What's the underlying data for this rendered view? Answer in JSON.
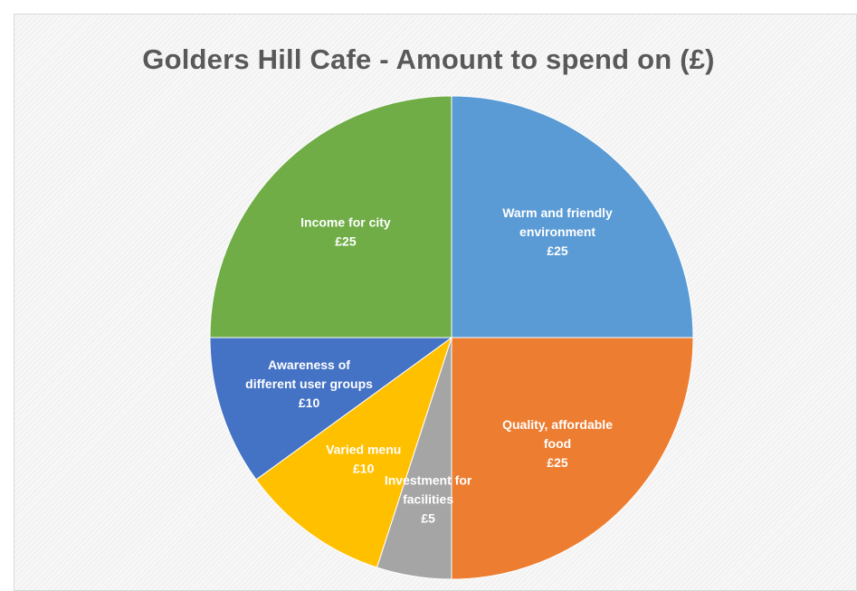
{
  "chart_data": {
    "type": "pie",
    "title": "Golders Hill Cafe - Amount to spend on (£)",
    "slices": [
      {
        "name": "Warm and friendly environment",
        "label_lines": [
          "Warm and friendly",
          "environment"
        ],
        "value": 25,
        "value_label": "£25",
        "color": "#5b9bd5"
      },
      {
        "name": "Quality, affordable food",
        "label_lines": [
          "Quality, affordable",
          "food"
        ],
        "value": 25,
        "value_label": "£25",
        "color": "#ed7d31"
      },
      {
        "name": "Investment for facilities",
        "label_lines": [
          "Investment for",
          "facilities"
        ],
        "value": 5,
        "value_label": "£5",
        "color": "#a5a5a5"
      },
      {
        "name": "Varied menu",
        "label_lines": [
          "Varied menu"
        ],
        "value": 10,
        "value_label": "£10",
        "color": "#ffc000"
      },
      {
        "name": "Awareness of different user groups",
        "label_lines": [
          "Awareness of",
          "different user groups"
        ],
        "value": 10,
        "value_label": "£10",
        "color": "#4472c4"
      },
      {
        "name": "Income for city",
        "label_lines": [
          "Income for city"
        ],
        "value": 25,
        "value_label": "£25",
        "color": "#70ad47"
      }
    ],
    "legend": "none"
  }
}
